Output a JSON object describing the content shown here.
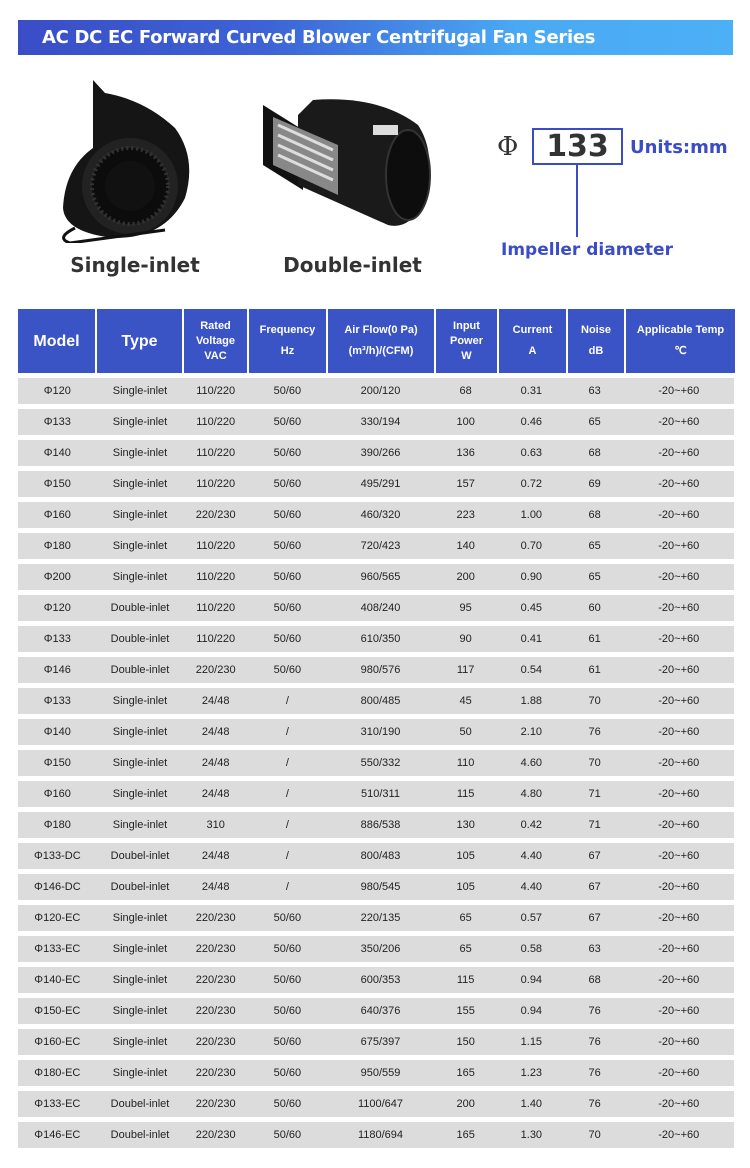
{
  "title": "AC DC EC Forward Curved Blower Centrifugal Fan Series",
  "products": [
    {
      "label": "Single-inlet"
    },
    {
      "label": "Double-inlet"
    }
  ],
  "diagram": {
    "symbol": "Φ",
    "value": "133",
    "units": "Units:mm",
    "caption": "Impeller diameter"
  },
  "colors": {
    "accent": "#3a53c5",
    "row_bg": "#dcdcdc"
  },
  "table": {
    "headers": [
      {
        "lines": [
          "Model"
        ]
      },
      {
        "lines": [
          "Type"
        ]
      },
      {
        "lines": [
          "Rated",
          "Voltage",
          "VAC"
        ]
      },
      {
        "lines": [
          "Frequency",
          "",
          "Hz"
        ]
      },
      {
        "lines": [
          "Air Flow(0 Pa)",
          "",
          "(m³/h)/(CFM)"
        ]
      },
      {
        "lines": [
          "Input",
          "Power",
          "W"
        ]
      },
      {
        "lines": [
          "Current",
          "",
          "A"
        ]
      },
      {
        "lines": [
          "Noise",
          "",
          "dB"
        ]
      },
      {
        "lines": [
          "Applicable Temp",
          "",
          "℃"
        ]
      }
    ],
    "rows": [
      [
        "Φ120",
        "Single-inlet",
        "110/220",
        "50/60",
        "200/120",
        "68",
        "0.31",
        "63",
        "-20~+60"
      ],
      [
        "Φ133",
        "Single-inlet",
        "110/220",
        "50/60",
        "330/194",
        "100",
        "0.46",
        "65",
        "-20~+60"
      ],
      [
        "Φ140",
        "Single-inlet",
        "110/220",
        "50/60",
        "390/266",
        "136",
        "0.63",
        "68",
        "-20~+60"
      ],
      [
        "Φ150",
        "Single-inlet",
        "110/220",
        "50/60",
        "495/291",
        "157",
        "0.72",
        "69",
        "-20~+60"
      ],
      [
        "Φ160",
        "Single-inlet",
        "220/230",
        "50/60",
        "460/320",
        "223",
        "1.00",
        "68",
        "-20~+60"
      ],
      [
        "Φ180",
        "Single-inlet",
        "110/220",
        "50/60",
        "720/423",
        "140",
        "0.70",
        "65",
        "-20~+60"
      ],
      [
        "Φ200",
        "Single-inlet",
        "110/220",
        "50/60",
        "960/565",
        "200",
        "0.90",
        "65",
        "-20~+60"
      ],
      [
        "Φ120",
        "Double-inlet",
        "110/220",
        "50/60",
        "408/240",
        "95",
        "0.45",
        "60",
        "-20~+60"
      ],
      [
        "Φ133",
        "Double-inlet",
        "110/220",
        "50/60",
        "610/350",
        "90",
        "0.41",
        "61",
        "-20~+60"
      ],
      [
        "Φ146",
        "Double-inlet",
        "220/230",
        "50/60",
        "980/576",
        "117",
        "0.54",
        "61",
        "-20~+60"
      ],
      [
        "Φ133",
        "Single-inlet",
        "24/48",
        "/",
        "800/485",
        "45",
        "1.88",
        "70",
        "-20~+60"
      ],
      [
        "Φ140",
        "Single-inlet",
        "24/48",
        "/",
        "310/190",
        "50",
        "2.10",
        "76",
        "-20~+60"
      ],
      [
        "Φ150",
        "Single-inlet",
        "24/48",
        "/",
        "550/332",
        "110",
        "4.60",
        "70",
        "-20~+60"
      ],
      [
        "Φ160",
        "Single-inlet",
        "24/48",
        "/",
        "510/311",
        "115",
        "4.80",
        "71",
        "-20~+60"
      ],
      [
        "Φ180",
        "Single-inlet",
        "310",
        "/",
        "886/538",
        "130",
        "0.42",
        "71",
        "-20~+60"
      ],
      [
        "Φ133-DC",
        "Doubel-inlet",
        "24/48",
        "/",
        "800/483",
        "105",
        "4.40",
        "67",
        "-20~+60"
      ],
      [
        "Φ146-DC",
        "Doubel-inlet",
        "24/48",
        "/",
        "980/545",
        "105",
        "4.40",
        "67",
        "-20~+60"
      ],
      [
        "Φ120-EC",
        "Single-inlet",
        "220/230",
        "50/60",
        "220/135",
        "65",
        "0.57",
        "67",
        "-20~+60"
      ],
      [
        "Φ133-EC",
        "Single-inlet",
        "220/230",
        "50/60",
        "350/206",
        "65",
        "0.58",
        "63",
        "-20~+60"
      ],
      [
        "Φ140-EC",
        "Single-inlet",
        "220/230",
        "50/60",
        "600/353",
        "115",
        "0.94",
        "68",
        "-20~+60"
      ],
      [
        "Φ150-EC",
        "Single-inlet",
        "220/230",
        "50/60",
        "640/376",
        "155",
        "0.94",
        "76",
        "-20~+60"
      ],
      [
        "Φ160-EC",
        "Single-inlet",
        "220/230",
        "50/60",
        "675/397",
        "150",
        "1.15",
        "76",
        "-20~+60"
      ],
      [
        "Φ180-EC",
        "Single-inlet",
        "220/230",
        "50/60",
        "950/559",
        "165",
        "1.23",
        "76",
        "-20~+60"
      ],
      [
        "Φ133-EC",
        "Doubel-inlet",
        "220/230",
        "50/60",
        "1100/647",
        "200",
        "1.40",
        "76",
        "-20~+60"
      ],
      [
        "Φ146-EC",
        "Doubel-inlet",
        "220/230",
        "50/60",
        "1180/694",
        "165",
        "1.30",
        "70",
        "-20~+60"
      ]
    ]
  }
}
